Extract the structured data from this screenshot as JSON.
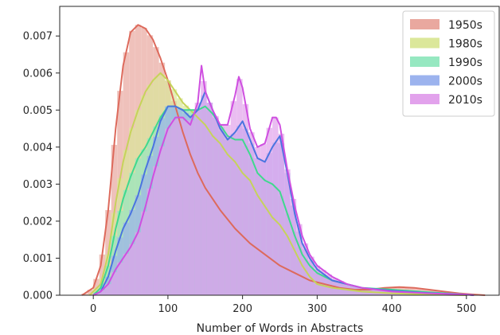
{
  "chart_data": {
    "type": "area",
    "title": "",
    "xlabel": "Number of Words in Abstracts",
    "ylabel": "",
    "xlim": [
      -45,
      545
    ],
    "ylim": [
      0,
      0.0078
    ],
    "x_ticks": [
      0,
      100,
      200,
      300,
      400,
      500
    ],
    "x_tick_labels": [
      "0",
      "100",
      "200",
      "300",
      "400",
      "500"
    ],
    "y_ticks": [
      0,
      0.001,
      0.002,
      0.003,
      0.004,
      0.005,
      0.006,
      0.007
    ],
    "y_tick_labels": [
      "0.000",
      "0.001",
      "0.002",
      "0.003",
      "0.004",
      "0.005",
      "0.006",
      "0.007"
    ],
    "grid": false,
    "legend_position": "top-right",
    "series": [
      {
        "name": "1950s",
        "color": "#dd6a5c",
        "fill": "#e9a89f",
        "kde": [
          [
            -15,
            0
          ],
          [
            0,
            0.0002
          ],
          [
            10,
            0.0008
          ],
          [
            20,
            0.0023
          ],
          [
            30,
            0.0045
          ],
          [
            40,
            0.0062
          ],
          [
            50,
            0.0071
          ],
          [
            60,
            0.0073
          ],
          [
            70,
            0.0072
          ],
          [
            80,
            0.0069
          ],
          [
            90,
            0.0064
          ],
          [
            100,
            0.0058
          ],
          [
            110,
            0.0051
          ],
          [
            120,
            0.0044
          ],
          [
            130,
            0.0038
          ],
          [
            140,
            0.0033
          ],
          [
            150,
            0.0029
          ],
          [
            170,
            0.0023
          ],
          [
            190,
            0.0018
          ],
          [
            210,
            0.0014
          ],
          [
            230,
            0.0011
          ],
          [
            250,
            0.0008
          ],
          [
            270,
            0.0006
          ],
          [
            290,
            0.0004
          ],
          [
            310,
            0.0003
          ],
          [
            330,
            0.0002
          ],
          [
            350,
            0.00015
          ],
          [
            370,
            0.00015
          ],
          [
            390,
            0.0002
          ],
          [
            410,
            0.00022
          ],
          [
            430,
            0.0002
          ],
          [
            450,
            0.00015
          ],
          [
            470,
            0.0001
          ],
          [
            490,
            5e-05
          ],
          [
            510,
            2e-05
          ],
          [
            525,
            0
          ]
        ]
      },
      {
        "name": "1980s",
        "color": "#c6d35a",
        "fill": "#dbe79a",
        "kde": [
          [
            -5,
            0
          ],
          [
            10,
            0.0003
          ],
          [
            20,
            0.0011
          ],
          [
            30,
            0.0025
          ],
          [
            40,
            0.0036
          ],
          [
            50,
            0.0044
          ],
          [
            60,
            0.005
          ],
          [
            70,
            0.0055
          ],
          [
            80,
            0.0058
          ],
          [
            90,
            0.006
          ],
          [
            100,
            0.0058
          ],
          [
            110,
            0.0055
          ],
          [
            120,
            0.0052
          ],
          [
            130,
            0.005
          ],
          [
            140,
            0.0048
          ],
          [
            150,
            0.0046
          ],
          [
            160,
            0.0043
          ],
          [
            170,
            0.0041
          ],
          [
            180,
            0.0038
          ],
          [
            190,
            0.0036
          ],
          [
            200,
            0.0033
          ],
          [
            210,
            0.0031
          ],
          [
            220,
            0.0027
          ],
          [
            230,
            0.0024
          ],
          [
            240,
            0.0021
          ],
          [
            250,
            0.0019
          ],
          [
            260,
            0.0016
          ],
          [
            270,
            0.0012
          ],
          [
            280,
            0.0008
          ],
          [
            290,
            0.0005
          ],
          [
            300,
            0.0003
          ],
          [
            320,
            0.0002
          ],
          [
            340,
            0.00015
          ],
          [
            360,
            0.0001
          ],
          [
            400,
            5e-05
          ],
          [
            450,
            2e-05
          ],
          [
            500,
            0
          ]
        ]
      },
      {
        "name": "1990s",
        "color": "#3fd98d",
        "fill": "#96e8c1",
        "kde": [
          [
            0,
            0
          ],
          [
            10,
            0.0002
          ],
          [
            20,
            0.0008
          ],
          [
            30,
            0.0018
          ],
          [
            40,
            0.0026
          ],
          [
            50,
            0.0032
          ],
          [
            60,
            0.0037
          ],
          [
            70,
            0.004
          ],
          [
            80,
            0.0044
          ],
          [
            90,
            0.0048
          ],
          [
            100,
            0.0051
          ],
          [
            110,
            0.0051
          ],
          [
            120,
            0.005
          ],
          [
            130,
            0.005
          ],
          [
            140,
            0.005
          ],
          [
            150,
            0.0051
          ],
          [
            160,
            0.0049
          ],
          [
            170,
            0.0046
          ],
          [
            180,
            0.0043
          ],
          [
            190,
            0.0042
          ],
          [
            200,
            0.0042
          ],
          [
            210,
            0.0038
          ],
          [
            220,
            0.0033
          ],
          [
            230,
            0.0031
          ],
          [
            240,
            0.003
          ],
          [
            250,
            0.0028
          ],
          [
            260,
            0.0022
          ],
          [
            270,
            0.0016
          ],
          [
            280,
            0.0011
          ],
          [
            290,
            0.0008
          ],
          [
            300,
            0.0006
          ],
          [
            320,
            0.0004
          ],
          [
            340,
            0.0003
          ],
          [
            360,
            0.0002
          ],
          [
            400,
            0.00015
          ],
          [
            450,
            8e-05
          ],
          [
            500,
            2e-05
          ],
          [
            510,
            0
          ]
        ]
      },
      {
        "name": "2000s",
        "color": "#4a74e0",
        "fill": "#9cb3ee",
        "kde": [
          [
            0,
            0
          ],
          [
            10,
            0.0001
          ],
          [
            20,
            0.0005
          ],
          [
            30,
            0.0012
          ],
          [
            40,
            0.0018
          ],
          [
            50,
            0.0022
          ],
          [
            60,
            0.0027
          ],
          [
            70,
            0.0034
          ],
          [
            80,
            0.004
          ],
          [
            90,
            0.0047
          ],
          [
            100,
            0.0051
          ],
          [
            110,
            0.0051
          ],
          [
            120,
            0.005
          ],
          [
            130,
            0.0048
          ],
          [
            140,
            0.005
          ],
          [
            150,
            0.0055
          ],
          [
            160,
            0.005
          ],
          [
            170,
            0.0045
          ],
          [
            180,
            0.0042
          ],
          [
            190,
            0.0044
          ],
          [
            200,
            0.0047
          ],
          [
            210,
            0.0042
          ],
          [
            220,
            0.0037
          ],
          [
            230,
            0.0036
          ],
          [
            240,
            0.004
          ],
          [
            250,
            0.0043
          ],
          [
            260,
            0.0033
          ],
          [
            270,
            0.0022
          ],
          [
            280,
            0.0014
          ],
          [
            290,
            0.001
          ],
          [
            300,
            0.0007
          ],
          [
            320,
            0.0004
          ],
          [
            340,
            0.0003
          ],
          [
            360,
            0.0002
          ],
          [
            400,
            0.00012
          ],
          [
            450,
            6e-05
          ],
          [
            500,
            2e-05
          ],
          [
            510,
            0
          ]
        ]
      },
      {
        "name": "2010s",
        "color": "#cf4fe0",
        "fill": "#e2a2ec",
        "kde": [
          [
            0,
            0
          ],
          [
            10,
            0.0001
          ],
          [
            20,
            0.0003
          ],
          [
            30,
            0.0007
          ],
          [
            40,
            0.001
          ],
          [
            50,
            0.0013
          ],
          [
            60,
            0.0017
          ],
          [
            70,
            0.0024
          ],
          [
            80,
            0.0032
          ],
          [
            90,
            0.0039
          ],
          [
            100,
            0.0045
          ],
          [
            110,
            0.0048
          ],
          [
            120,
            0.0048
          ],
          [
            130,
            0.0046
          ],
          [
            140,
            0.0052
          ],
          [
            145,
            0.0062
          ],
          [
            150,
            0.0055
          ],
          [
            160,
            0.005
          ],
          [
            170,
            0.0046
          ],
          [
            180,
            0.0046
          ],
          [
            190,
            0.0054
          ],
          [
            195,
            0.0059
          ],
          [
            200,
            0.0056
          ],
          [
            210,
            0.0045
          ],
          [
            220,
            0.004
          ],
          [
            230,
            0.0041
          ],
          [
            240,
            0.0048
          ],
          [
            245,
            0.0048
          ],
          [
            250,
            0.0046
          ],
          [
            260,
            0.0034
          ],
          [
            270,
            0.0024
          ],
          [
            280,
            0.0016
          ],
          [
            290,
            0.0011
          ],
          [
            300,
            0.0008
          ],
          [
            320,
            0.0005
          ],
          [
            340,
            0.0003
          ],
          [
            360,
            0.0002
          ],
          [
            400,
            0.0001
          ],
          [
            450,
            5e-05
          ],
          [
            500,
            2e-05
          ],
          [
            510,
            0
          ]
        ]
      }
    ]
  }
}
